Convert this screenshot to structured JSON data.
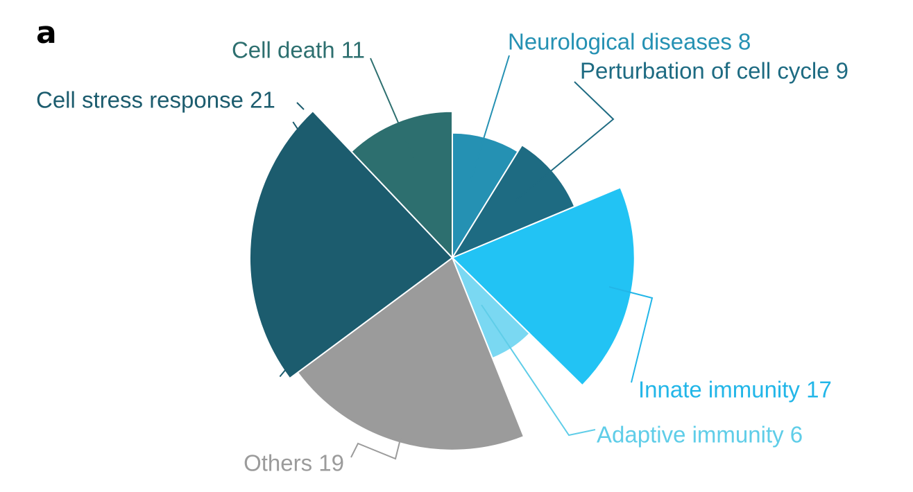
{
  "panel_label": "a",
  "chart_data": {
    "type": "pie",
    "subtype": "polar-area",
    "title": "",
    "segments": [
      {
        "name": "Neurological diseases",
        "value": 8,
        "color": "#2591b3"
      },
      {
        "name": "Perturbation of cell cycle",
        "value": 9,
        "color": "#1e6b82"
      },
      {
        "name": "Innate immunity",
        "value": 17,
        "color": "#22c3f4"
      },
      {
        "name": "Adaptive immunity",
        "value": 6,
        "color": "#7ad8f2"
      },
      {
        "name": "Others",
        "value": 19,
        "color": "#9b9b9b"
      },
      {
        "name": "Cell stress response",
        "value": 21,
        "color": "#1c5c6e"
      },
      {
        "name": "Cell death",
        "value": 11,
        "color": "#2d6f6f"
      }
    ],
    "label_colors": {
      "Neurological diseases": "#2591b3",
      "Perturbation of cell cycle": "#1e6b82",
      "Innate immunity": "#22b6e8",
      "Adaptive immunity": "#5fcde8",
      "Others": "#9b9b9b",
      "Cell stress response": "#1c5c6e",
      "Cell death": "#2d6f6f"
    }
  }
}
